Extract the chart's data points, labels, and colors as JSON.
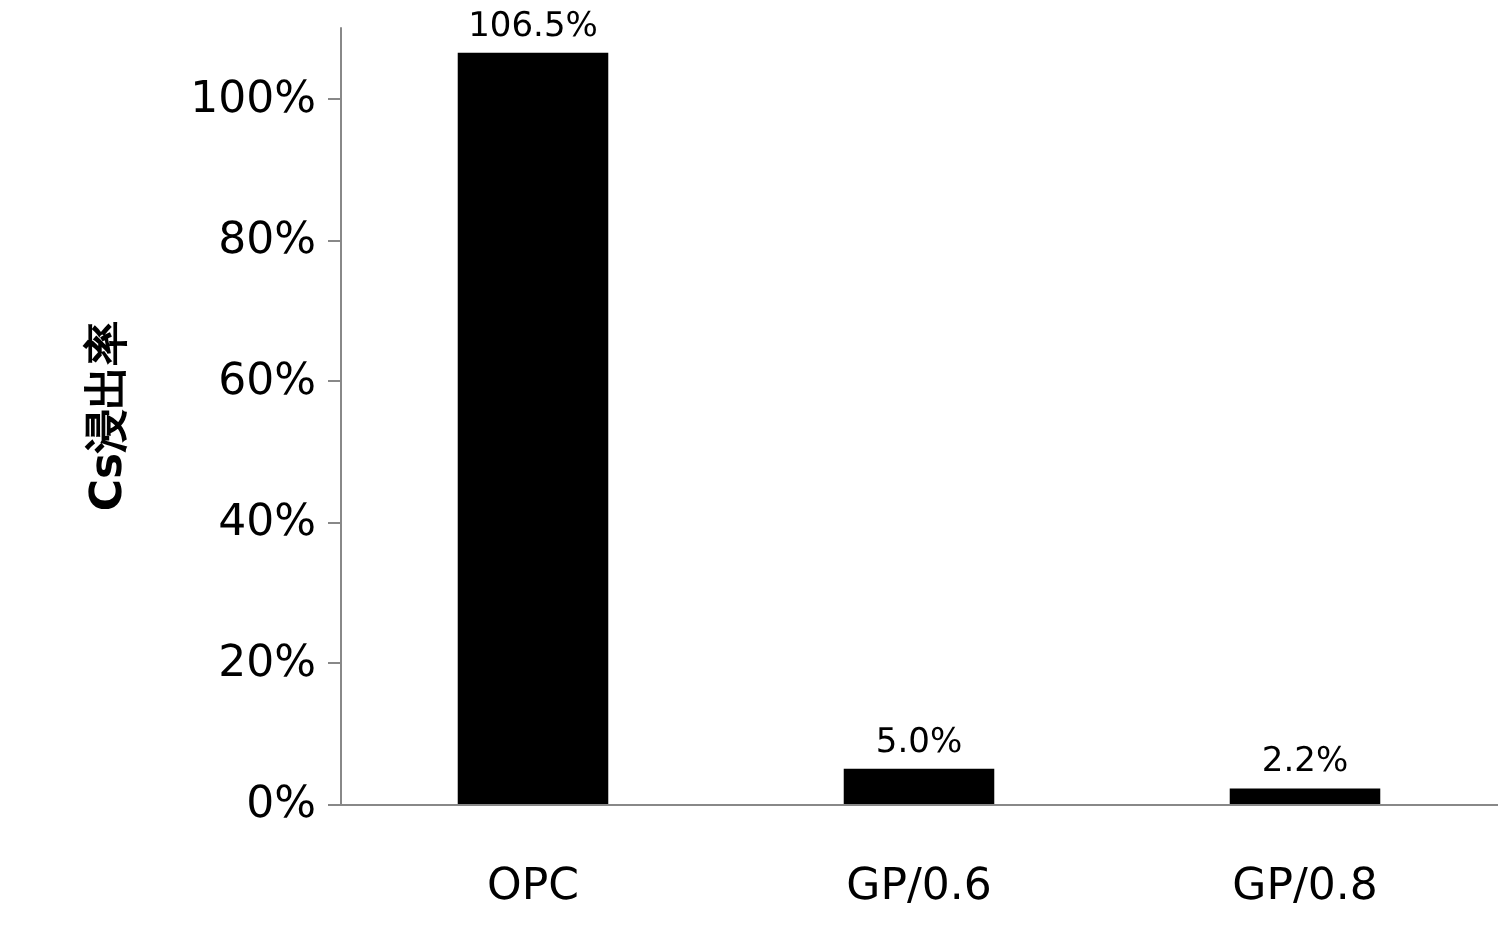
{
  "chart_data": {
    "type": "bar",
    "ylabel": "Cs浸出率",
    "categories": [
      "OPC",
      "GP/0.6",
      "GP/0.8"
    ],
    "values": [
      106.5,
      5.0,
      2.2
    ],
    "color": "#000000",
    "value_labels": [
      "106.5%",
      "5.0%",
      "2.2%"
    ],
    "ylim": [
      0,
      110
    ],
    "yticks": [
      {
        "value": 0,
        "label": "0%"
      },
      {
        "value": 20,
        "label": "20%"
      },
      {
        "value": 40,
        "label": "40%"
      },
      {
        "value": 60,
        "label": "60%"
      },
      {
        "value": 80,
        "label": "80%"
      },
      {
        "value": 100,
        "label": "100%"
      }
    ]
  }
}
